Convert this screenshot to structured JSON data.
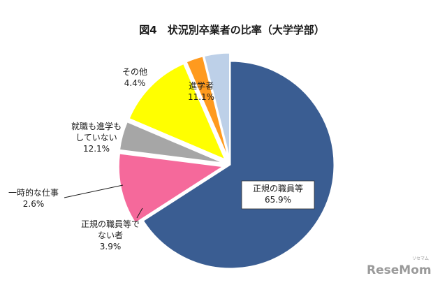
{
  "chart_data": {
    "type": "pie",
    "title": "図4　状況別卒業者の比率（大学学部）",
    "categories": [
      "正規の職員等",
      "進学者",
      "その他",
      "就職も進学もしていない",
      "一時的な仕事",
      "正規の職員等でない者"
    ],
    "values": [
      65.9,
      11.1,
      4.4,
      12.1,
      2.6,
      3.9
    ],
    "value_labels": [
      "65.9%",
      "11.1%",
      "4.4%",
      "12.1%",
      "2.6%",
      "3.9%"
    ],
    "label_lines": [
      [
        "正規の職員等"
      ],
      [
        "進学者"
      ],
      [
        "その他"
      ],
      [
        "就職も進学も",
        "していない"
      ],
      [
        "一時的な仕事"
      ],
      [
        "正規の職員等で",
        "ない者"
      ]
    ],
    "colors": [
      "#3a5d92",
      "#f5699b",
      "#a6a6a6",
      "#ffff00",
      "#ff9a1e",
      "#bdd0e8"
    ],
    "exploded": [
      false,
      true,
      true,
      true,
      true,
      true
    ]
  },
  "watermark": {
    "text_res": "Rese",
    "text_mom": "Mom",
    "ruby": "リセマム"
  }
}
